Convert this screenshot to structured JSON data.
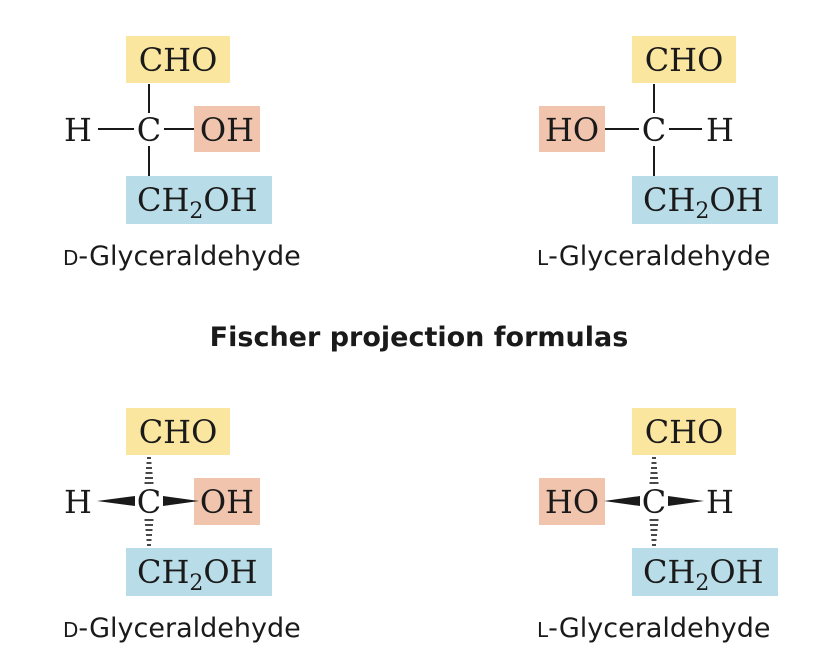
{
  "colors": {
    "aldehyde_box": "#fbe6a0",
    "hydroxyl_box": "#f0c4ad",
    "hydroxymethyl_box": "#b9dde8",
    "text": "#1a1a1a"
  },
  "section_title": "Fischer projection formulas",
  "labels": {
    "cho": "CHO",
    "oh": "OH",
    "ho": "HO",
    "h": "H",
    "c": "C",
    "ch2oh_ch": "CH",
    "ch2oh_sub": "2",
    "ch2oh_oh": "OH"
  },
  "captions": {
    "d_prefix": "D",
    "l_prefix": "L",
    "suffix": "-Glyceraldehyde"
  }
}
